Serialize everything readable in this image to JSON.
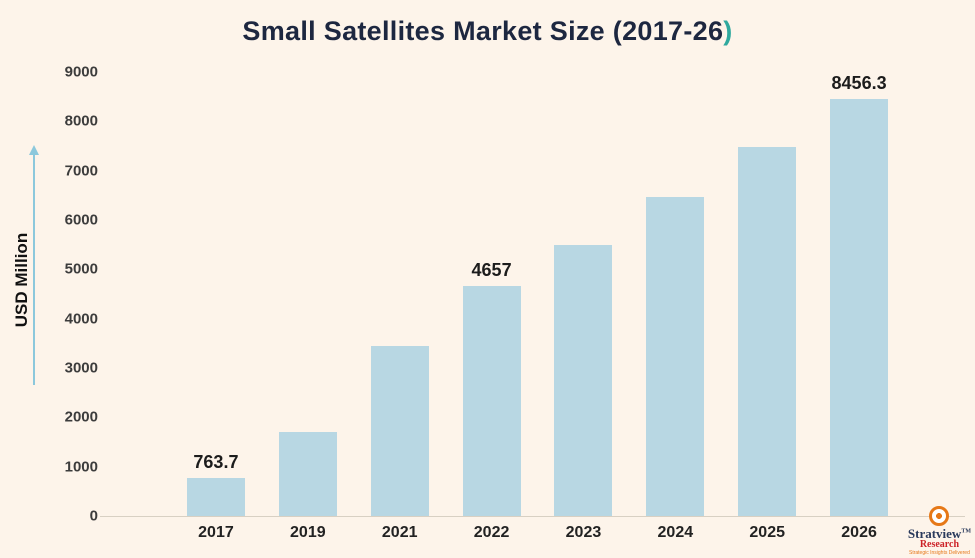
{
  "page": {
    "background": "#fdf4ea"
  },
  "title": {
    "text": "Small Satellites Market Size (2017-26",
    "suffix": ")",
    "color": "#1d2740",
    "suffix_color": "#2fa99e"
  },
  "y_axis_label": "USD Million",
  "brand": {
    "name": "Stratview",
    "tm": "TM",
    "sub": "Research",
    "tagline": "Strategic Insights Delivered"
  },
  "chart_data": {
    "type": "bar",
    "categories": [
      "2017",
      "2019",
      "2021",
      "2022",
      "2023",
      "2024",
      "2025",
      "2026"
    ],
    "values": [
      763.7,
      1700,
      3450,
      4657,
      5490,
      6470,
      7480,
      8456.3
    ],
    "data_labels": [
      "763.7",
      "",
      "",
      "4657",
      "",
      "",
      "",
      "8456.3"
    ],
    "title": "Small Satellites Market Size (2017-26)",
    "xlabel": "",
    "ylabel": "USD Million",
    "ylim": [
      0,
      9000
    ],
    "yticks": [
      0,
      1000,
      2000,
      3000,
      4000,
      5000,
      6000,
      7000,
      8000,
      9000
    ],
    "grid": false,
    "legend": false,
    "bar_color": "#b8d7e3",
    "arrow_color": "#8cc8dc"
  }
}
